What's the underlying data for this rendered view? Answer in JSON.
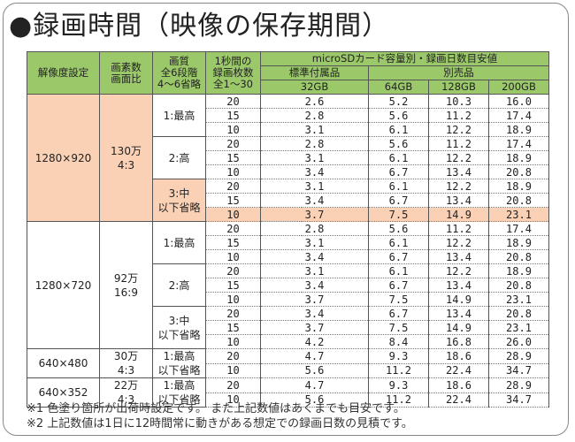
{
  "title": "●録画時間（映像の保存期間）",
  "headers": {
    "c1": "解像度設定",
    "c2a": "画素数",
    "c2b": "画面比",
    "c3a": "画質",
    "c3b": "全6段階",
    "c3c": "4～6省略",
    "c4a": "1秒間の",
    "c4b": "録画枚数",
    "c4c": "全1～30",
    "top": "microSDカード容量別・録画日数目安値",
    "std": "標準付属品",
    "opt": "別売品",
    "cap1": "32GB",
    "cap2": "64GB",
    "cap3": "128GB",
    "cap4": "200GB"
  },
  "groups": [
    {
      "res": "1280×920",
      "px_a": "130万",
      "px_b": "4:3",
      "qualities": [
        {
          "qa": "1:最高",
          "qb": "",
          "rows": [
            [
              "20",
              "2.6",
              "5.2",
              "10.3",
              "16.0"
            ],
            [
              "15",
              "2.8",
              "5.6",
              "11.2",
              "17.4"
            ],
            [
              "10",
              "3.1",
              "6.1",
              "12.2",
              "18.9"
            ]
          ]
        },
        {
          "qa": "2:高",
          "qb": "",
          "rows": [
            [
              "20",
              "2.8",
              "5.6",
              "11.2",
              "17.4"
            ],
            [
              "15",
              "3.1",
              "6.1",
              "12.2",
              "18.9"
            ],
            [
              "10",
              "3.4",
              "6.7",
              "13.4",
              "20.8"
            ]
          ]
        },
        {
          "qa": "3:中",
          "qb": "以下省略",
          "rows": [
            [
              "20",
              "3.1",
              "6.1",
              "12.2",
              "18.9"
            ],
            [
              "15",
              "3.4",
              "6.7",
              "13.4",
              "20.8"
            ],
            [
              "10",
              "3.7",
              "7.5",
              "14.9",
              "23.1"
            ]
          ]
        }
      ]
    },
    {
      "res": "1280×720",
      "px_a": "92万",
      "px_b": "16:9",
      "qualities": [
        {
          "qa": "1:最高",
          "qb": "",
          "rows": [
            [
              "20",
              "2.8",
              "5.6",
              "11.2",
              "17.4"
            ],
            [
              "15",
              "3.1",
              "6.1",
              "12.2",
              "18.9"
            ],
            [
              "10",
              "3.4",
              "6.7",
              "13.4",
              "20.8"
            ]
          ]
        },
        {
          "qa": "2:高",
          "qb": "",
          "rows": [
            [
              "20",
              "3.1",
              "6.1",
              "12.2",
              "18.9"
            ],
            [
              "15",
              "3.4",
              "6.7",
              "13.4",
              "20.8"
            ],
            [
              "10",
              "3.7",
              "7.5",
              "14.9",
              "23.1"
            ]
          ]
        },
        {
          "qa": "3:中",
          "qb": "以下省略",
          "rows": [
            [
              "20",
              "3.4",
              "6.7",
              "13.4",
              "20.8"
            ],
            [
              "15",
              "3.7",
              "7.5",
              "14.9",
              "23.1"
            ],
            [
              "10",
              "4.2",
              "8.4",
              "16.8",
              "26.0"
            ]
          ]
        }
      ]
    },
    {
      "res": "640×480",
      "px_a": "30万",
      "px_b": "4:3",
      "qualities": [
        {
          "qa": "1:最高",
          "qb": "以下省略",
          "rows": [
            [
              "20",
              "4.7",
              "9.3",
              "18.6",
              "28.9"
            ],
            [
              "10",
              "5.6",
              "11.2",
              "22.4",
              "34.7"
            ]
          ]
        }
      ]
    },
    {
      "res": "640×352",
      "px_a": "22万",
      "px_b": "4:3",
      "qualities": [
        {
          "qa": "1:最高",
          "qb": "以下省略",
          "rows": [
            [
              "20",
              "4.7",
              "9.3",
              "18.6",
              "28.9"
            ],
            [
              "10",
              "5.6",
              "11.2",
              "22.4",
              "34.7"
            ]
          ]
        }
      ]
    }
  ],
  "notes": [
    "※1 色塗り箇所が出荷時設定です。 また上記数値はあくまでも目安です。",
    "※2 上記数値は1日に12時間常に動きがある想定での録画日数の見積です。"
  ],
  "colors": {
    "header_green": "#9bc96a",
    "highlight_peach": "#fbd1b5"
  }
}
